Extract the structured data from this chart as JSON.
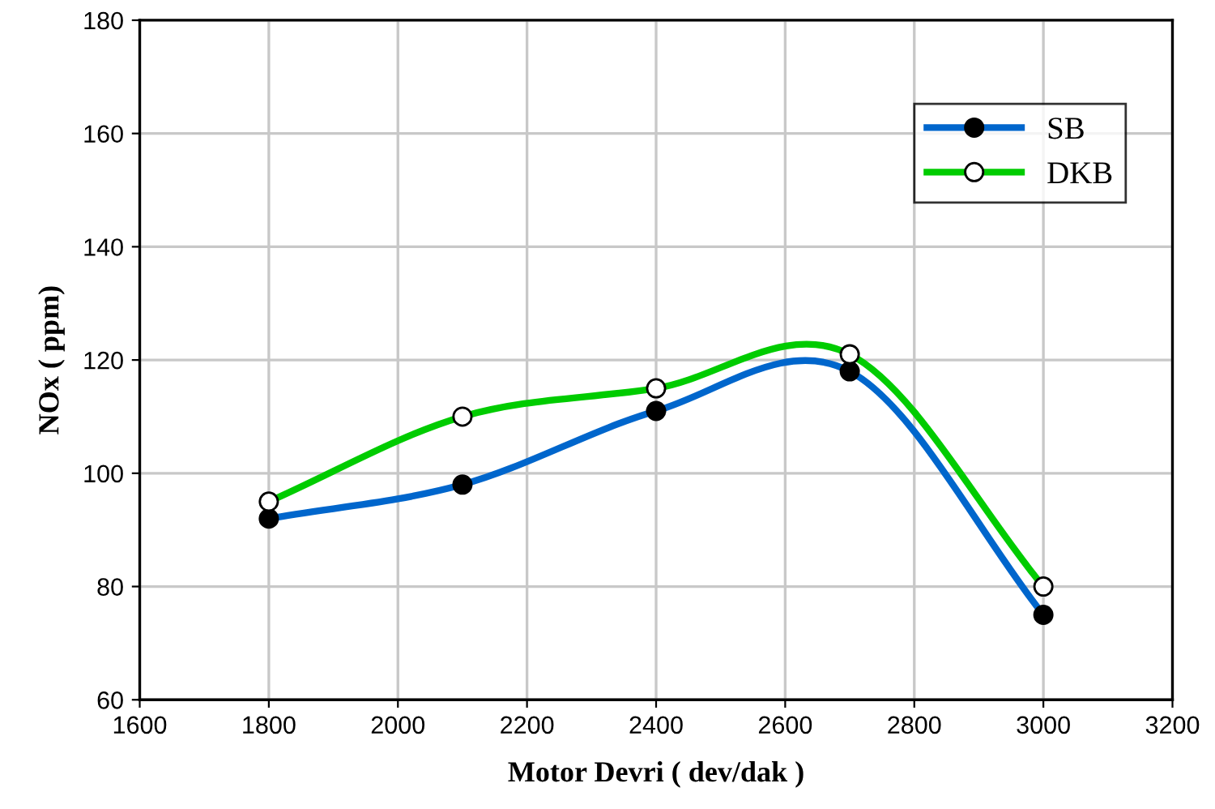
{
  "chart_data": {
    "type": "line",
    "xlabel": "Motor Devri ( dev/dak )",
    "ylabel": "NOx ( ppm)",
    "x": [
      1800,
      2100,
      2400,
      2700,
      3000
    ],
    "series": [
      {
        "name": "SB",
        "color": "#0066cc",
        "values": [
          92,
          98,
          111,
          118,
          75
        ]
      },
      {
        "name": "DKB",
        "color": "#00cc00",
        "values": [
          95,
          110,
          115,
          121,
          80
        ]
      }
    ],
    "xlim": [
      1600,
      3200
    ],
    "xticks": [
      1600,
      1800,
      2000,
      2200,
      2400,
      2600,
      2800,
      3000,
      3200
    ],
    "ylim": [
      60,
      180
    ],
    "yticks": [
      60,
      80,
      100,
      120,
      140,
      160,
      180
    ],
    "grid": true,
    "legend": "top right",
    "marker": "circle",
    "line_style": "solid"
  }
}
